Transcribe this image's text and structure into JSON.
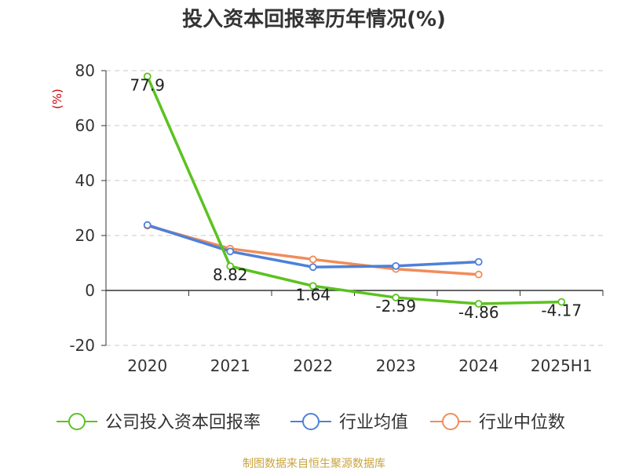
{
  "footer": {
    "source": "制图数据来自恒生聚源数据库"
  },
  "chart_data": {
    "type": "line",
    "title": "投入资本回报率历年情况(%)",
    "ylabel": "(%)",
    "xlabel": "",
    "categories": [
      "2020",
      "2021",
      "2022",
      "2023",
      "2024",
      "2025H1"
    ],
    "ylim": [
      -20,
      80
    ],
    "yticks": [
      -20,
      0,
      20,
      40,
      60,
      80
    ],
    "grid": true,
    "legend_position": "bottom",
    "series": [
      {
        "name": "公司投入资本回报率",
        "color": "#5cc21f",
        "values": [
          77.9,
          8.82,
          1.64,
          -2.59,
          -4.86,
          -4.17
        ],
        "labels": true
      },
      {
        "name": "行业均值",
        "color": "#4f80d8",
        "values": [
          23.8,
          14.2,
          8.5,
          8.9,
          10.4,
          null
        ],
        "labels": false
      },
      {
        "name": "行业中位数",
        "color": "#f08c5a",
        "values": [
          23.6,
          15.2,
          11.3,
          7.8,
          5.8,
          null
        ],
        "labels": false
      }
    ]
  }
}
